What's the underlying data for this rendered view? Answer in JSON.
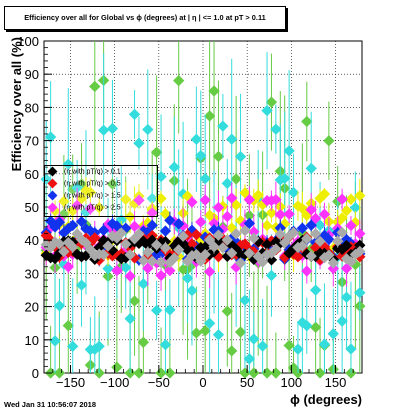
{
  "header": {
    "title": "Efficiency over all for Global vs ϕ (degrees) at | η | <= 1.0 at pT > 0.11",
    "timestamp": "Wed Jan 31 10:56:07 2018"
  },
  "colors": {
    "green": "#66cc44",
    "cyan": "#33dddd",
    "yellow": "#eeee00",
    "magenta": "#ff33ff",
    "blue": "#1133ee",
    "red": "#ee1111",
    "black": "#000000",
    "gray": "#aaaaaa"
  },
  "legend": {
    "entries": [
      {
        "label": "(η with pT/q) > 0.1",
        "color": "#000000"
      },
      {
        "label": "(η with pT/q) > 0.5",
        "color": "#ee1111"
      },
      {
        "label": "(η with pT/q) > 1.5",
        "color": "#1133ee"
      },
      {
        "label": "(η with pT/q) > 2.5",
        "color": "#ff33ff"
      }
    ]
  },
  "chart_data": {
    "type": "scatter",
    "title": "Efficiency over all for Global vs ϕ (degrees) at | η | <= 1.0 at pT > 0.11",
    "xlabel": "ϕ (degrees)",
    "ylabel": "Efficiency over all (%)",
    "xlim": [
      -180,
      180
    ],
    "ylim": [
      0,
      100
    ],
    "xticks": [
      -150,
      -100,
      -50,
      0,
      50,
      100,
      150
    ],
    "yticks": [
      0,
      10,
      20,
      30,
      40,
      50,
      60,
      70,
      80,
      90,
      100
    ],
    "grid": true,
    "series": [
      {
        "color": "#66cc44",
        "baseline": 38,
        "spread": 55,
        "err": 22,
        "seed": 7
      },
      {
        "color": "#33dddd",
        "baseline": 40,
        "spread": 40,
        "err": 18,
        "seed": 13
      },
      {
        "color": "#eeee00",
        "baseline": 45,
        "spread": 10,
        "err": 4,
        "seed": 21
      },
      {
        "color": "#ff33ff",
        "baseline": 41,
        "spread": 12,
        "err": 4,
        "seed": 29
      },
      {
        "color": "#1133ee",
        "baseline": 40,
        "spread": 6,
        "err": 2,
        "seed": 37
      },
      {
        "color": "#ee1111",
        "baseline": 38,
        "spread": 4,
        "err": 1.5,
        "seed": 43
      },
      {
        "color": "#000000",
        "baseline": 37,
        "spread": 3,
        "err": 1,
        "seed": 51
      },
      {
        "color": "#aaaaaa",
        "baseline": 38,
        "spread": 5,
        "err": 1.5,
        "seed": 59
      }
    ],
    "points_per_series": 72
  }
}
